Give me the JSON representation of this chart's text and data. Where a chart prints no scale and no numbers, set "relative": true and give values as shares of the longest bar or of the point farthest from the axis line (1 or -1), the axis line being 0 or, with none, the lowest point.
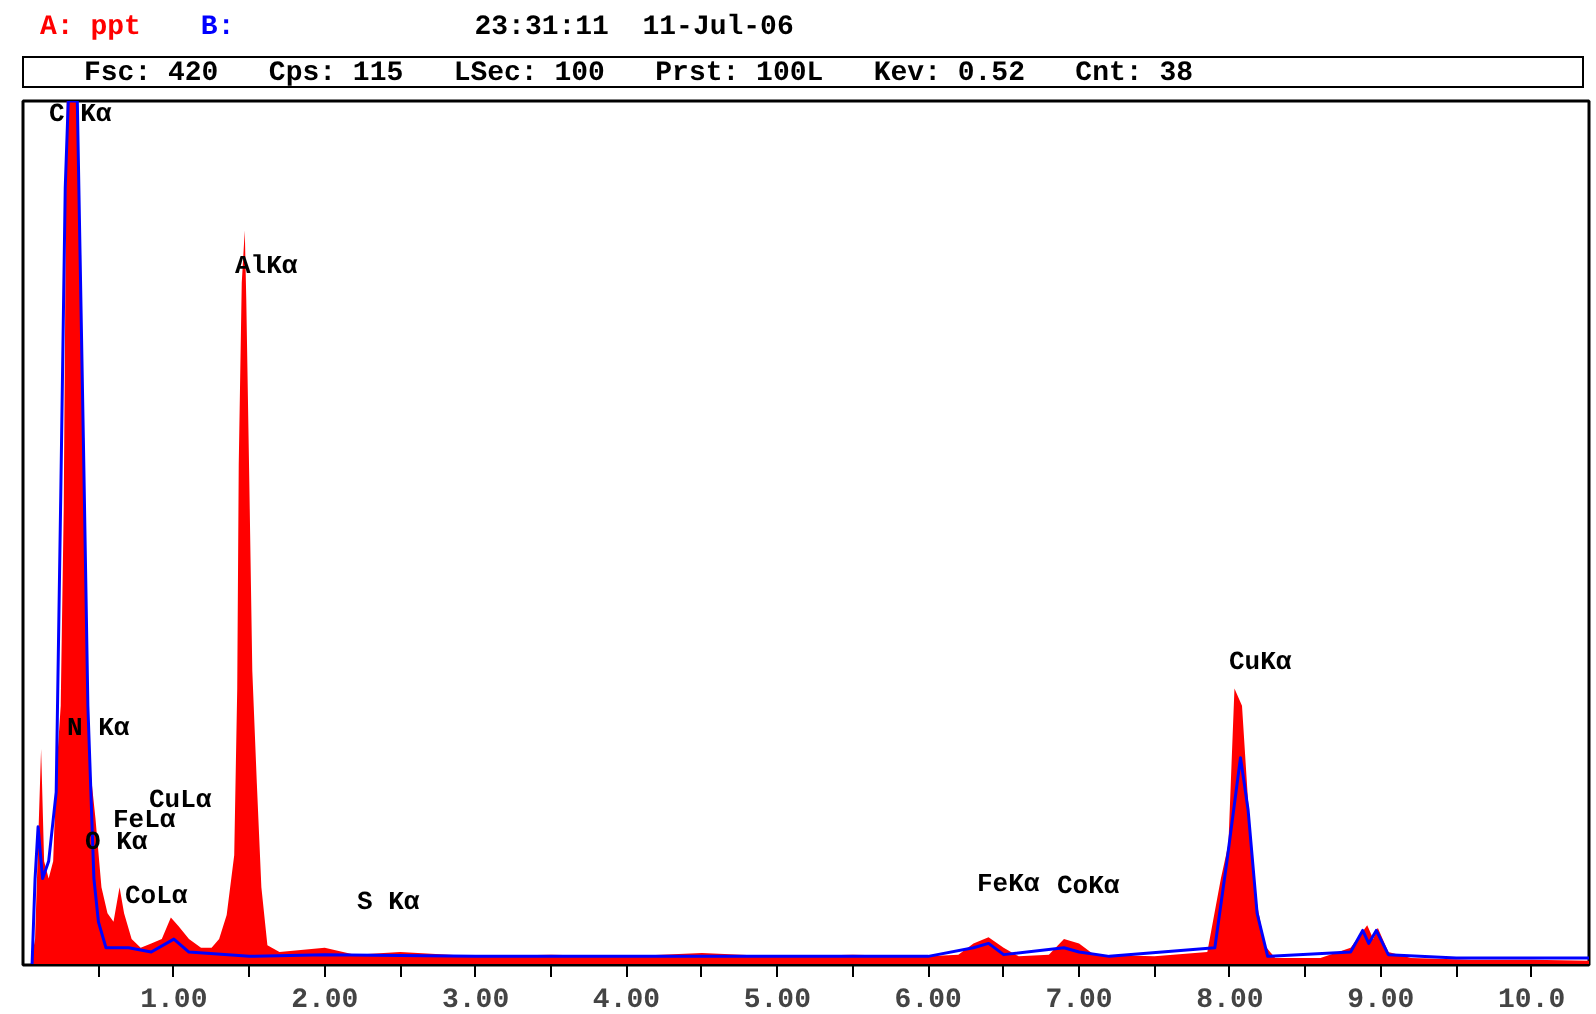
{
  "chart_data": {
    "type": "area",
    "relative": true,
    "title": "23:31:11  11-Jul-06",
    "subtitle": "Fsc: 420   Cps: 115   LSec: 100   Prst: 100L   Kev: 0.52   Cnt: 38",
    "xlim": [
      0,
      10.38
    ],
    "xticks": [
      {
        "value": 0.5,
        "label": null
      },
      {
        "value": 1,
        "label": "1.00"
      },
      {
        "value": 1.5,
        "label": null
      },
      {
        "value": 2,
        "label": "2.00"
      },
      {
        "value": 2.5,
        "label": null
      },
      {
        "value": 3,
        "label": "3.00"
      },
      {
        "value": 3.5,
        "label": null
      },
      {
        "value": 4,
        "label": "4.00"
      },
      {
        "value": 4.5,
        "label": null
      },
      {
        "value": 5,
        "label": "5.00"
      },
      {
        "value": 5.5,
        "label": null
      },
      {
        "value": 6,
        "label": "6.00"
      },
      {
        "value": 6.5,
        "label": null
      },
      {
        "value": 7,
        "label": "7.00"
      },
      {
        "value": 7.5,
        "label": null
      },
      {
        "value": 8,
        "label": "8.00"
      },
      {
        "value": 8.5,
        "label": null
      },
      {
        "value": 9,
        "label": "9.00"
      },
      {
        "value": 9.5,
        "label": null
      },
      {
        "value": 10,
        "label": "10.0"
      }
    ],
    "grid": false,
    "legend": "top left",
    "tick_labels": "x",
    "series": [
      {
        "name": "A: ppt",
        "color": "#ff0000",
        "x": [
          0,
          0.05,
          0.08,
          0.1,
          0.12,
          0.14,
          0.17,
          0.2,
          0.22,
          0.25,
          0.27,
          0.29,
          0.36,
          0.38,
          0.4,
          0.42,
          0.45,
          0.48,
          0.52,
          0.56,
          0.6,
          0.64,
          0.67,
          0.72,
          0.78,
          0.85,
          0.92,
          0.98,
          1.03,
          1.1,
          1.18,
          1.25,
          1.3,
          1.35,
          1.4,
          1.42,
          1.43,
          1.45,
          1.47,
          1.48,
          1.5,
          1.52,
          1.55,
          1.58,
          1.62,
          1.7,
          2.0,
          2.2,
          2.5,
          3.0,
          3.5,
          4.0,
          4.5,
          5.0,
          5.5,
          6.0,
          6.2,
          6.3,
          6.4,
          6.5,
          6.6,
          6.8,
          6.9,
          7.0,
          7.1,
          7.5,
          7.85,
          7.94,
          7.99,
          8.03,
          8.08,
          8.12,
          8.17,
          8.23,
          8.3,
          8.6,
          8.8,
          8.91,
          8.95,
          8.98,
          9.05,
          9.2,
          9.6,
          10.0,
          10.38
        ],
        "values": [
          0,
          0,
          0.03,
          0.14,
          0.25,
          0.12,
          0.1,
          0.12,
          0.22,
          0.3,
          0.53,
          1.0,
          1.0,
          0.75,
          0.61,
          0.35,
          0.22,
          0.17,
          0.09,
          0.06,
          0.05,
          0.09,
          0.06,
          0.03,
          0.02,
          0.025,
          0.03,
          0.055,
          0.045,
          0.03,
          0.02,
          0.02,
          0.03,
          0.058,
          0.127,
          0.32,
          0.58,
          0.79,
          0.85,
          0.77,
          0.56,
          0.34,
          0.21,
          0.09,
          0.023,
          0.015,
          0.02,
          0.012,
          0.015,
          0.01,
          0.012,
          0.01,
          0.014,
          0.01,
          0.012,
          0.01,
          0.012,
          0.025,
          0.032,
          0.02,
          0.01,
          0.012,
          0.03,
          0.025,
          0.012,
          0.01,
          0.015,
          0.1,
          0.14,
          0.32,
          0.3,
          0.19,
          0.08,
          0.023,
          0.008,
          0.008,
          0.02,
          0.046,
          0.03,
          0.043,
          0.015,
          0.008,
          0.006,
          0.006,
          0.005
        ]
      },
      {
        "name": "B:",
        "type": "line",
        "color": "#0000ff",
        "x": [
          0.06,
          0.08,
          0.1,
          0.13,
          0.17,
          0.22,
          0.25,
          0.28,
          0.3,
          0.36,
          0.4,
          0.43,
          0.47,
          0.5,
          0.55,
          0.7,
          0.85,
          1.0,
          1.1,
          1.5,
          2.0,
          3.0,
          4.0,
          5.0,
          6.0,
          6.3,
          6.4,
          6.5,
          6.9,
          7.0,
          7.2,
          7.9,
          7.98,
          8.04,
          8.07,
          8.12,
          8.18,
          8.25,
          8.8,
          8.88,
          8.92,
          8.97,
          9.05,
          9.5,
          10.38
        ],
        "values": [
          0,
          0.1,
          0.16,
          0.1,
          0.12,
          0.2,
          0.54,
          0.9,
          1.0,
          1.0,
          0.61,
          0.3,
          0.1,
          0.05,
          0.02,
          0.02,
          0.015,
          0.03,
          0.015,
          0.01,
          0.012,
          0.01,
          0.01,
          0.01,
          0.01,
          0.02,
          0.025,
          0.012,
          0.02,
          0.015,
          0.01,
          0.02,
          0.12,
          0.2,
          0.24,
          0.18,
          0.06,
          0.01,
          0.015,
          0.04,
          0.025,
          0.04,
          0.012,
          0.008,
          0.008
        ]
      }
    ],
    "annotations": [
      "C Kα",
      "AlKα",
      "N Kα",
      "CuLα",
      "FeLα",
      "O Kα",
      "CoLα",
      "S Kα",
      "FeKα",
      "CoKα",
      "CuKα"
    ]
  }
}
